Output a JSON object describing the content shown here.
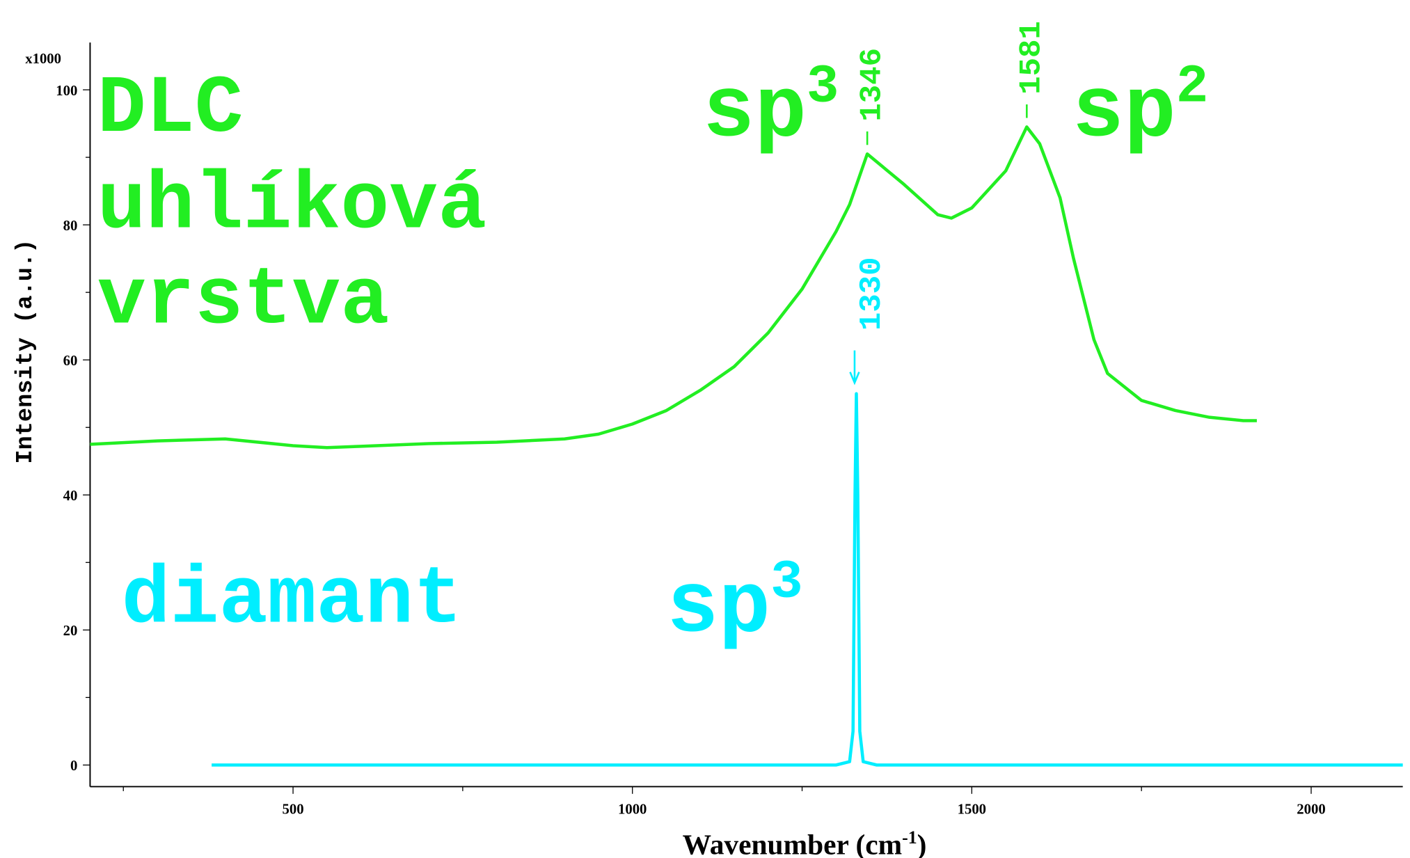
{
  "chart_data": {
    "type": "line",
    "x_label": {
      "text": "Wavenumber (cm",
      "sup": "-1",
      "suffix": ")"
    },
    "y_label": "Intensity (a.u.)",
    "y_multiplier": "x1000",
    "xlim": [
      201,
      2135
    ],
    "ylim": [
      -3.2,
      107
    ],
    "xticks": [
      500,
      1000,
      1500,
      2000
    ],
    "xminorticks": [
      250,
      750,
      1250,
      1750
    ],
    "yticks": [
      0,
      20,
      40,
      60,
      80,
      100
    ],
    "yminorticks": [
      10,
      30,
      50,
      70,
      90
    ],
    "series": [
      {
        "name": "DLC",
        "color": "#22ee22",
        "peaks": [
          1346,
          1581
        ],
        "x": [
          201,
          300,
          400,
          500,
          550,
          600,
          700,
          800,
          900,
          950,
          1000,
          1050,
          1100,
          1150,
          1200,
          1250,
          1300,
          1320,
          1346,
          1400,
          1450,
          1470,
          1500,
          1550,
          1581,
          1600,
          1630,
          1650,
          1680,
          1700,
          1750,
          1800,
          1850,
          1900,
          1920
        ],
        "values": [
          47.5,
          48,
          48.3,
          47.3,
          47,
          47.2,
          47.6,
          47.8,
          48.3,
          49,
          50.5,
          52.5,
          55.5,
          59,
          64,
          70.5,
          79,
          83,
          90.5,
          86,
          81.5,
          81,
          82.5,
          88,
          94.5,
          92,
          84,
          75,
          63,
          58,
          54,
          52.5,
          51.5,
          51,
          51
        ]
      },
      {
        "name": "diamant",
        "color": "#00eeff",
        "peaks": [
          1330
        ],
        "x": [
          380,
          1300,
          1320,
          1325,
          1328,
          1330,
          1332,
          1335,
          1340,
          1360,
          2135
        ],
        "values": [
          0,
          0,
          0.5,
          5,
          40,
          55,
          40,
          5,
          0.5,
          0,
          0
        ]
      }
    ],
    "annotations": [
      "DLC",
      "uhlíková",
      "vrstva",
      "diamant"
    ],
    "peak_annotations": [
      {
        "text": "sp",
        "sup": "3"
      },
      {
        "text": "sp",
        "sup": "2"
      },
      {
        "text": "sp",
        "sup": "3"
      }
    ]
  }
}
